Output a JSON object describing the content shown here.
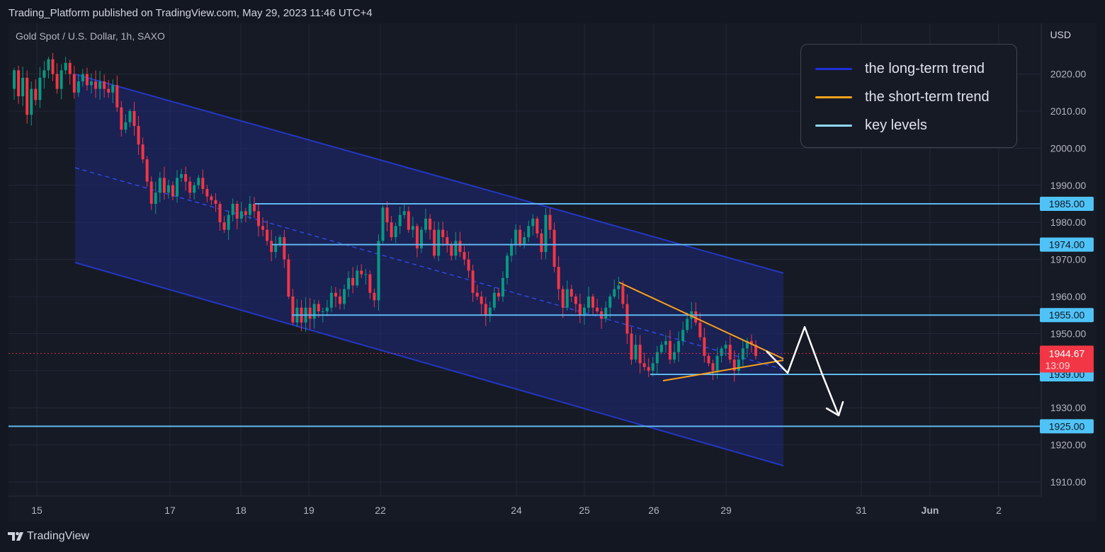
{
  "header": {
    "published_text": "Trading_Platform published on TradingView.com, May 29, 2023 11:46 UTC+4"
  },
  "chart_header": {
    "symbol_line": "Gold Spot / U.S. Dollar, 1h, SAXO",
    "currency": "USD"
  },
  "legend": {
    "items": [
      {
        "label": "the long-term trend",
        "color": "#1e2fd6"
      },
      {
        "label": "the short-term trend",
        "color": "#f7a21b"
      },
      {
        "label": "key levels",
        "color": "#8fd8fb"
      }
    ]
  },
  "footer": {
    "brand": "TradingView",
    "logo_icon": "tradingview-logo-icon"
  },
  "colors": {
    "background": "#131722",
    "panel": "#161a25",
    "grid": "#242838",
    "up_candle": "#089981",
    "down_candle": "#f23645",
    "channel_line": "#2437c2",
    "channel_fill": "rgba(30,42,140,0.45)",
    "triangle": "#f7a21b",
    "key_level": "#5fb8f0",
    "price_label_bg": "#4fc3f7",
    "current_price_bg": "#f23645",
    "arrow": "#ffffff"
  },
  "chart_data": {
    "type": "candlestick",
    "symbol": "Gold Spot / U.S. Dollar",
    "interval": "1h",
    "ylim": [
      1906,
      2037
    ],
    "y_ticks": [
      1910,
      1920,
      1930,
      1940,
      1950,
      1960,
      1970,
      1980,
      1990,
      2000,
      2010,
      2020
    ],
    "x_ticks": [
      "15",
      "17",
      "18",
      "19",
      "22",
      "24",
      "25",
      "26",
      "29",
      "31",
      "Jun",
      "2"
    ],
    "key_levels": [
      1985.0,
      1974.0,
      1955.0,
      1939.0,
      1925.0
    ],
    "current_price": {
      "value": 1944.67,
      "countdown": "13:09"
    },
    "candles_hourly": [
      2016,
      2021,
      2014,
      2019,
      2009,
      2016,
      2013,
      2019,
      2021,
      2024,
      2020,
      2016,
      2021,
      2023,
      2020,
      2015,
      2018,
      2020,
      2017,
      2018,
      2016,
      2018,
      2016,
      2015,
      2017,
      2011,
      2005,
      2007,
      2010,
      2006,
      2001,
      1997,
      1991,
      1985,
      1988,
      1992,
      1988,
      1990,
      1987,
      1992,
      1993,
      1991,
      1988,
      1990,
      1992,
      1989,
      1987,
      1986,
      1985,
      1980,
      1978,
      1982,
      1985,
      1981,
      1983,
      1982,
      1985,
      1983,
      1979,
      1978,
      1975,
      1972,
      1974,
      1976,
      1970,
      1960,
      1953,
      1957,
      1953,
      1957,
      1954,
      1958,
      1956,
      1956,
      1957,
      1961,
      1960,
      1958,
      1962,
      1965,
      1963,
      1967,
      1966,
      1966,
      1961,
      1959,
      1975,
      1984,
      1980,
      1976,
      1979,
      1982,
      1983,
      1978,
      1979,
      1973,
      1978,
      1981,
      1978,
      1971,
      1978,
      1976,
      1974,
      1971,
      1975,
      1972,
      1970,
      1967,
      1961,
      1960,
      1958,
      1955,
      1957,
      1961,
      1960,
      1965,
      1971,
      1974,
      1978,
      1974,
      1976,
      1979,
      1981,
      1977,
      1972,
      1982,
      1978,
      1968,
      1962,
      1957,
      1962,
      1960,
      1958,
      1955,
      1957,
      1960,
      1957,
      1956,
      1954,
      1957,
      1960,
      1962,
      1963,
      1958,
      1950,
      1943,
      1947,
      1942,
      1941,
      1940,
      1942,
      1945,
      1947,
      1948,
      1943,
      1945,
      1948,
      1951,
      1954,
      1956,
      1953,
      1949,
      1944,
      1942,
      1940,
      1944,
      1946,
      1947,
      1943,
      1940,
      1943,
      1946,
      1948,
      1947,
      1944
    ]
  }
}
